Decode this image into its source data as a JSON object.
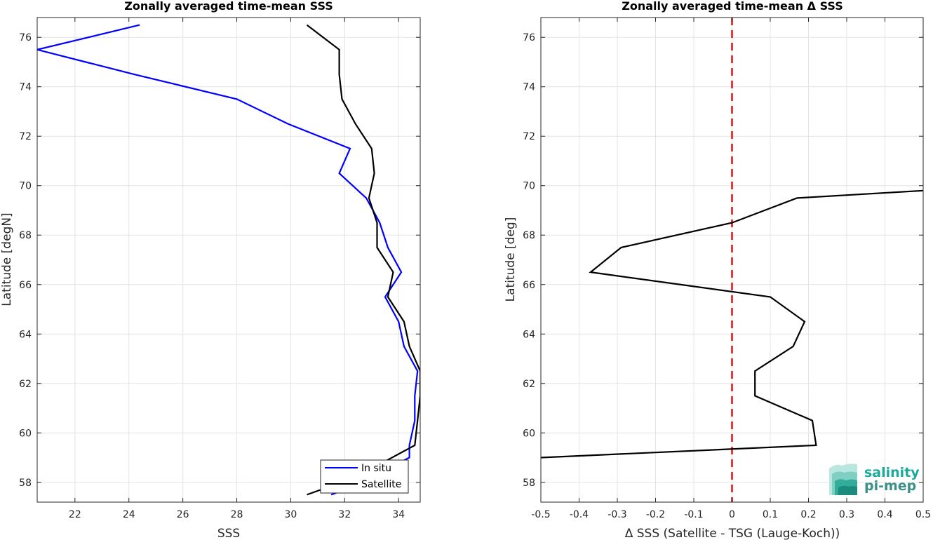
{
  "chart_data": [
    {
      "type": "line",
      "title": "Zonally averaged time-mean SSS",
      "xlabel": "SSS",
      "ylabel": "Latitude [degN]",
      "xlim": [
        20.6,
        34.8
      ],
      "ylim": [
        57.2,
        76.8
      ],
      "xticks": [
        22,
        24,
        26,
        28,
        30,
        32,
        34
      ],
      "yticks": [
        58,
        60,
        62,
        64,
        66,
        68,
        70,
        72,
        74,
        76
      ],
      "grid": true,
      "legend_position": "bottom-right",
      "series": [
        {
          "name": "In situ",
          "color": "#0000ff",
          "points": [
            [
              31.5,
              57.5
            ],
            [
              32.0,
              57.7
            ],
            [
              34.4,
              59.0
            ],
            [
              34.4,
              59.5
            ],
            [
              34.6,
              60.5
            ],
            [
              34.6,
              61.5
            ],
            [
              34.7,
              62.5
            ],
            [
              34.2,
              63.5
            ],
            [
              34.0,
              64.5
            ],
            [
              33.5,
              65.5
            ],
            [
              34.1,
              66.5
            ],
            [
              33.6,
              67.5
            ],
            [
              33.3,
              68.5
            ],
            [
              32.8,
              69.5
            ],
            [
              31.8,
              70.5
            ],
            [
              32.2,
              71.5
            ],
            [
              29.9,
              72.5
            ],
            [
              28.0,
              73.5
            ],
            [
              24.2,
              74.5
            ],
            [
              20.6,
              75.5
            ],
            [
              24.4,
              76.5
            ]
          ]
        },
        {
          "name": "Satellite",
          "color": "#000000",
          "points": [
            [
              30.6,
              57.5
            ],
            [
              32.4,
              58.2
            ],
            [
              34.6,
              59.5
            ],
            [
              34.7,
              60.5
            ],
            [
              34.8,
              61.5
            ],
            [
              34.8,
              62.5
            ],
            [
              34.4,
              63.5
            ],
            [
              34.2,
              64.5
            ],
            [
              33.6,
              65.5
            ],
            [
              33.8,
              66.5
            ],
            [
              33.2,
              67.5
            ],
            [
              33.2,
              68.5
            ],
            [
              32.9,
              69.5
            ],
            [
              33.1,
              70.5
            ],
            [
              33.0,
              71.5
            ],
            [
              32.4,
              72.5
            ],
            [
              31.9,
              73.5
            ],
            [
              31.8,
              74.5
            ],
            [
              31.8,
              75.5
            ],
            [
              30.6,
              76.5
            ]
          ]
        }
      ]
    },
    {
      "type": "line",
      "title": "Zonally averaged time-mean Δ SSS",
      "xlabel": "Δ SSS (Satellite - TSG (Lauge-Koch))",
      "ylabel": "Latitude [deg]",
      "xlim": [
        -0.5,
        0.5
      ],
      "ylim": [
        57.2,
        76.8
      ],
      "xticks": [
        -0.5,
        -0.4,
        -0.3,
        -0.2,
        -0.1,
        0,
        0.1,
        0.2,
        0.3,
        0.4,
        0.5
      ],
      "yticks": [
        58,
        60,
        62,
        64,
        66,
        68,
        70,
        72,
        74,
        76
      ],
      "grid": true,
      "reference_line": {
        "x": 0,
        "color": "#e31a1c",
        "style": "dashed"
      },
      "series": [
        {
          "color": "#000000",
          "points": [
            [
              -0.5,
              59.0
            ],
            [
              0.22,
              59.5
            ],
            [
              0.21,
              60.5
            ],
            [
              0.06,
              61.5
            ],
            [
              0.06,
              62.5
            ],
            [
              0.16,
              63.5
            ],
            [
              0.19,
              64.5
            ],
            [
              0.1,
              65.5
            ],
            [
              -0.37,
              66.5
            ],
            [
              -0.29,
              67.5
            ],
            [
              0.0,
              68.5
            ],
            [
              0.17,
              69.5
            ],
            [
              0.5,
              69.8
            ]
          ]
        }
      ]
    }
  ],
  "logo": {
    "line1": "salinity",
    "line2": "pi-mep",
    "color_primary": "#1aa99a",
    "color_secondary": "#3a8f86"
  }
}
